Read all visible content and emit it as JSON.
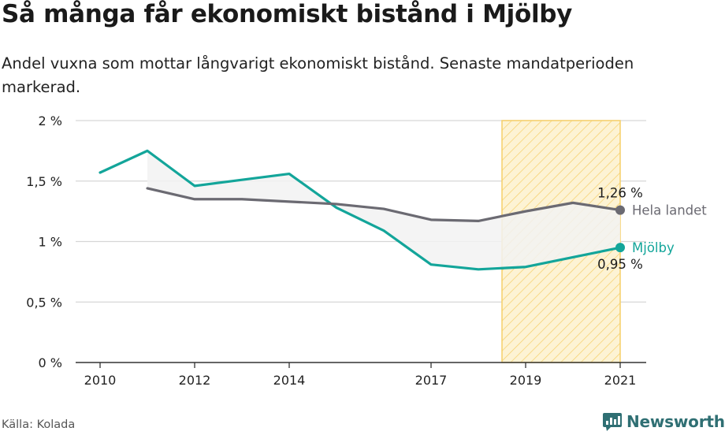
{
  "title": "Så många får ekonomiskt bistånd i Mjölby",
  "subtitle": "Andel vuxna som mottar långvarigt ekonomiskt bistånd. Senaste mandatperioden markerad.",
  "source": "Källa: Kolada",
  "brand": "Newsworthy",
  "colors": {
    "mjolby": "#13a59a",
    "riket": "#6b6a72",
    "period_fill": "#fdf3d4",
    "period_stroke": "#f6cf68",
    "grid": "#d6d6d6",
    "brand": "#2f6f73"
  },
  "chart_data": {
    "type": "line",
    "y_ticks": [
      "0 %",
      "0,5 %",
      "1 %",
      "1,5 %",
      "2 %"
    ],
    "y_tick_values": [
      0,
      0.5,
      1,
      1.5,
      2
    ],
    "ylim": [
      0,
      2
    ],
    "xlim": [
      2010,
      2021
    ],
    "x_ticks": [
      "2010",
      "2012",
      "2014",
      "2017",
      "2019",
      "2021"
    ],
    "x_tick_values": [
      2010,
      2012,
      2014,
      2017,
      2019,
      2021
    ],
    "highlight_period": [
      2018.5,
      2021
    ],
    "series": [
      {
        "name": "Mjölby",
        "x": [
          2010,
          2011,
          2012,
          2013,
          2014,
          2015,
          2016,
          2017,
          2018,
          2019,
          2020,
          2021
        ],
        "values": [
          1.57,
          1.75,
          1.46,
          1.51,
          1.56,
          1.28,
          1.09,
          0.81,
          0.77,
          0.79,
          0.87,
          0.95
        ],
        "end_label": "0,95 %"
      },
      {
        "name": "Hela landet",
        "x": [
          2011,
          2012,
          2013,
          2014,
          2015,
          2016,
          2017,
          2018,
          2019,
          2020,
          2021
        ],
        "values": [
          1.44,
          1.35,
          1.35,
          1.33,
          1.31,
          1.27,
          1.18,
          1.17,
          1.25,
          1.32,
          1.26
        ],
        "end_label": "1,26 %"
      }
    ]
  }
}
